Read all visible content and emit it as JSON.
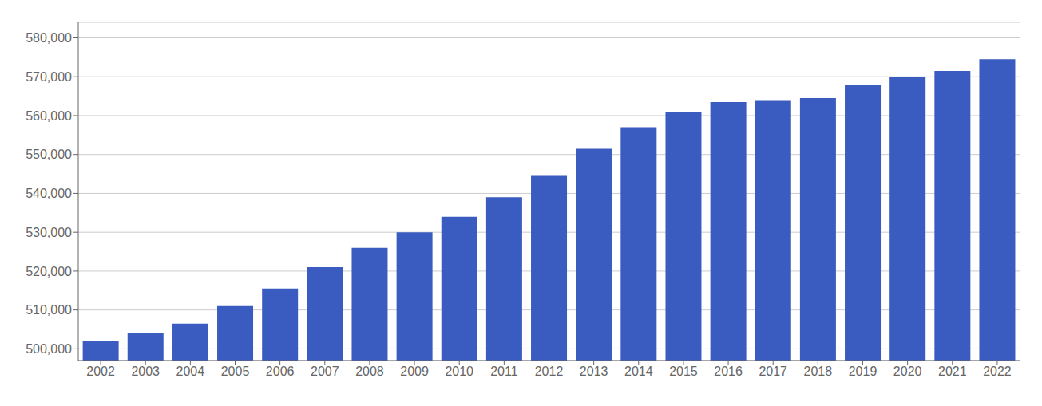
{
  "chart_data": {
    "type": "bar",
    "categories": [
      "2002",
      "2003",
      "2004",
      "2005",
      "2006",
      "2007",
      "2008",
      "2009",
      "2010",
      "2011",
      "2012",
      "2013",
      "2014",
      "2015",
      "2016",
      "2017",
      "2018",
      "2019",
      "2020",
      "2021",
      "2022"
    ],
    "values": [
      502000,
      504000,
      506500,
      511000,
      515500,
      521000,
      526000,
      530000,
      534000,
      539000,
      544500,
      551500,
      557000,
      561000,
      563500,
      564000,
      564500,
      568000,
      570000,
      571500,
      574500
    ],
    "color": "#3a5bbf",
    "ylim": [
      497000,
      584000
    ],
    "yticks": [
      {
        "value": 500000,
        "label": "500,000"
      },
      {
        "value": 510000,
        "label": "510,000"
      },
      {
        "value": 520000,
        "label": "520,000"
      },
      {
        "value": 530000,
        "label": "530,000"
      },
      {
        "value": 540000,
        "label": "540,000"
      },
      {
        "value": 550000,
        "label": "550,000"
      },
      {
        "value": 560000,
        "label": "560,000"
      },
      {
        "value": 570000,
        "label": "570,000"
      },
      {
        "value": 580000,
        "label": "580,000"
      }
    ],
    "grid": true
  }
}
